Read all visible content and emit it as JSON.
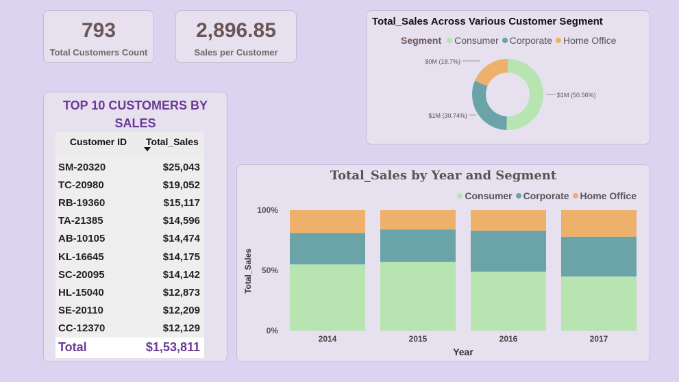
{
  "kpis": {
    "customers": {
      "value": "793",
      "label": "Total Customers Count"
    },
    "sales_per_customer": {
      "value": "2,896.85",
      "label": "Sales per Customer"
    }
  },
  "top_customers": {
    "title": "TOP 10 CUSTOMERS BY SALES",
    "columns": [
      "Customer ID",
      "Total_Sales"
    ],
    "rows": [
      [
        "SM-20320",
        "$25,043"
      ],
      [
        "TC-20980",
        "$19,052"
      ],
      [
        "RB-19360",
        "$15,117"
      ],
      [
        "TA-21385",
        "$14,596"
      ],
      [
        "AB-10105",
        "$14,474"
      ],
      [
        "KL-16645",
        "$14,175"
      ],
      [
        "SC-20095",
        "$14,142"
      ],
      [
        "HL-15040",
        "$12,873"
      ],
      [
        "SE-20110",
        "$12,209"
      ],
      [
        "CC-12370",
        "$12,129"
      ]
    ],
    "total_label": "Total",
    "total_value": "$1,53,811"
  },
  "colors": {
    "consumer": "#b7e4b0",
    "corporate": "#6aa3a8",
    "home_office": "#eeb16c"
  },
  "chart_data": [
    {
      "type": "pie",
      "title": "Total_Sales Across Various Customer Segment",
      "legend_title": "Segment",
      "legend_position": "top",
      "categories": [
        "Consumer",
        "Corporate",
        "Home Office"
      ],
      "values": [
        50.56,
        30.74,
        18.7
      ],
      "data_labels": [
        "$1M (50.56%)",
        "$1M (30.74%)",
        "$0M (18.7%)"
      ]
    },
    {
      "type": "bar",
      "title": "Total_Sales by Year and Segment",
      "xlabel": "Year",
      "ylabel": "Total_Sales",
      "legend_position": "top-right",
      "categories": [
        "2014",
        "2015",
        "2016",
        "2017"
      ],
      "yticks": [
        "0%",
        "50%",
        "100%"
      ],
      "ylim": [
        0,
        100
      ],
      "series": [
        {
          "name": "Consumer",
          "values": [
            55,
            57,
            49,
            45
          ]
        },
        {
          "name": "Corporate",
          "values": [
            26,
            27,
            34,
            33
          ]
        },
        {
          "name": "Home Office",
          "values": [
            19,
            16,
            17,
            22
          ]
        }
      ]
    }
  ]
}
